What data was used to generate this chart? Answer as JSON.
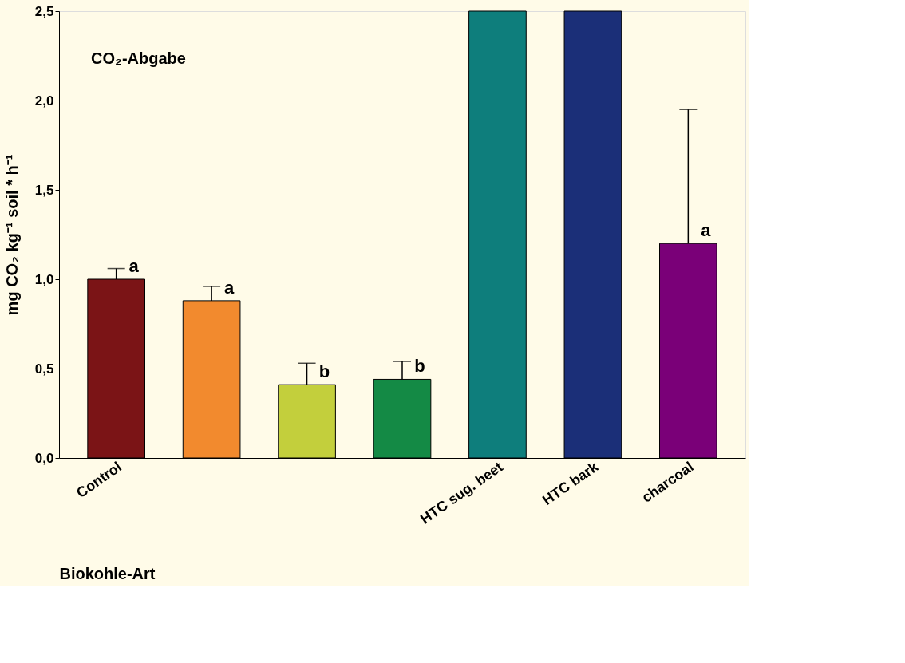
{
  "chart_data": {
    "type": "bar",
    "title": "CO₂-Abgabe",
    "xlabel": "Biokohle-Art",
    "ylabel": "mg CO₂ kg⁻¹ soil * h⁻¹",
    "categories": [
      "Control",
      null,
      null,
      null,
      "HTC sug. beet",
      "HTC bark",
      "charcoal"
    ],
    "values": [
      1.0,
      0.88,
      0.41,
      0.44,
      2.5,
      2.5,
      1.2
    ],
    "colors": [
      "#7b1416",
      "#f28a2e",
      "#c3cf3c",
      "#148a45",
      "#0e7e7c",
      "#1b2f78",
      "#7a0078"
    ],
    "errors": [
      [
        1.0,
        1.06
      ],
      [
        0.88,
        0.96
      ],
      [
        0.41,
        0.53
      ],
      [
        0.44,
        0.54
      ],
      null,
      null,
      [
        1.2,
        1.95
      ]
    ],
    "value_labels": [
      "a",
      "a",
      "b",
      "b",
      null,
      null,
      "a"
    ],
    "ylim": [
      0,
      2.5
    ],
    "yticks": [
      {
        "value": 0,
        "label": "0,0"
      },
      {
        "value": 0.5,
        "label": "0,5"
      },
      {
        "value": 1,
        "label": "1,0"
      },
      {
        "value": 1.5,
        "label": "1,5"
      },
      {
        "value": 2,
        "label": "2,0"
      },
      {
        "value": 2.5,
        "label": "2,5"
      }
    ],
    "grid": false
  }
}
